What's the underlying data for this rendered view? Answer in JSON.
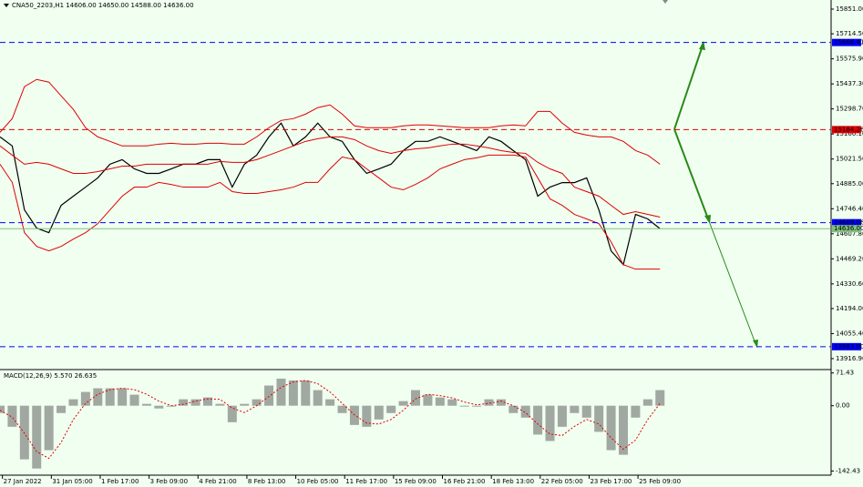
{
  "chart_data": [
    {
      "type": "line",
      "title": "CNA50_2203,H1  14606.00 14650.00 14588.00 14636.00",
      "x": [
        0,
        10,
        20,
        30,
        40,
        50,
        60,
        70,
        80,
        90,
        100,
        110,
        120,
        130,
        140,
        150,
        160,
        170,
        180,
        190,
        200,
        210,
        220,
        230,
        240,
        250,
        260,
        270,
        280,
        290,
        300,
        310,
        320,
        330,
        340,
        350,
        360,
        370,
        380,
        390,
        400,
        410,
        420,
        430,
        440,
        450,
        460,
        470,
        480,
        490,
        500,
        510,
        520,
        530,
        540
      ],
      "xlim": [
        0,
        680
      ],
      "ylim": [
        13856.3,
        15901.5
      ],
      "yticks": [
        {
          "value": 15851,
          "label": "15851.00"
        },
        {
          "value": 15714.5,
          "label": "15714.50"
        },
        {
          "value": 15575.9,
          "label": "15575.90"
        },
        {
          "value": 15437.3,
          "label": "15437.30"
        },
        {
          "value": 15298.7,
          "label": "15298.70"
        },
        {
          "value": 15160.1,
          "label": "15160.10"
        },
        {
          "value": 15021.5,
          "label": "15021.50"
        },
        {
          "value": 14885,
          "label": "14885.00"
        },
        {
          "value": 14746.4,
          "label": "14746.40"
        },
        {
          "value": 14607.8,
          "label": "14607.80"
        },
        {
          "value": 14469.2,
          "label": "14469.20"
        },
        {
          "value": 14330.6,
          "label": "14330.60"
        },
        {
          "value": 14194,
          "label": "14194.00"
        },
        {
          "value": 14055.4,
          "label": "14055.40"
        },
        {
          "value": 13916.9,
          "label": "13916.90"
        }
      ],
      "series": [
        {
          "color": "#000000",
          "values": [
            15144,
            15094,
            14740,
            14639,
            14614,
            14765,
            14816,
            14866,
            14917,
            14993,
            15018,
            14967,
            14942,
            14942,
            14967,
            14993,
            14993,
            15018,
            15018,
            14866,
            14993,
            15043,
            15144,
            15220,
            15094,
            15144,
            15220,
            15144,
            15119,
            15018,
            14942,
            14967,
            14993,
            15068,
            15119,
            15119,
            15144,
            15119,
            15094,
            15068,
            15144,
            15119,
            15068,
            15018,
            14816,
            14866,
            14891,
            14891,
            14917,
            14740,
            14513,
            14437,
            14715,
            14690,
            14636
          ]
        },
        {
          "color": "#e00000",
          "values": [
            15169,
            15245,
            15422,
            15462,
            15447,
            15371,
            15296,
            15195,
            15144,
            15119,
            15094,
            15094,
            15094,
            15104,
            15109,
            15104,
            15104,
            15109,
            15109,
            15104,
            15104,
            15144,
            15195,
            15235,
            15245,
            15270,
            15306,
            15321,
            15270,
            15205,
            15195,
            15195,
            15195,
            15205,
            15210,
            15210,
            15205,
            15200,
            15195,
            15195,
            15195,
            15205,
            15210,
            15205,
            15285,
            15285,
            15220,
            15169,
            15154,
            15144,
            15144,
            15119,
            15068,
            15043,
            14993
          ]
        },
        {
          "color": "#e00000",
          "values": [
            15094,
            15043,
            14993,
            15003,
            14993,
            14967,
            14942,
            14942,
            14952,
            14967,
            14982,
            14982,
            14993,
            14993,
            14993,
            14993,
            14993,
            14993,
            15008,
            15003,
            15003,
            15018,
            15043,
            15068,
            15094,
            15119,
            15134,
            15144,
            15144,
            15129,
            15094,
            15068,
            15053,
            15068,
            15078,
            15083,
            15094,
            15104,
            15104,
            15094,
            15083,
            15068,
            15058,
            15053,
            15003,
            14967,
            14942,
            14866,
            14841,
            14816,
            14765,
            14715,
            14730,
            14715,
            14700
          ]
        },
        {
          "color": "#e00000",
          "values": [
            14993,
            14892,
            14614,
            14538,
            14513,
            14538,
            14578,
            14614,
            14664,
            14740,
            14816,
            14866,
            14866,
            14892,
            14881,
            14866,
            14866,
            14866,
            14892,
            14841,
            14831,
            14831,
            14841,
            14851,
            14866,
            14892,
            14892,
            14967,
            15033,
            15018,
            14967,
            14917,
            14866,
            14851,
            14881,
            14917,
            14967,
            14993,
            15018,
            15028,
            15043,
            15043,
            15043,
            15033,
            14917,
            14801,
            14765,
            14715,
            14690,
            14664,
            14563,
            14437,
            14412,
            14412,
            14412
          ]
        }
      ],
      "levels": [
        {
          "value": 15666.41,
          "label": "15666.41",
          "color": "#0000ff",
          "dash": true
        },
        {
          "value": 15184.26,
          "label": "15184.26",
          "color": "#e00000",
          "dash": true
        },
        {
          "value": 14669.06,
          "label": "14669.06",
          "color": "#0000ff",
          "dash": true
        },
        {
          "value": 14636,
          "label": "14636.00",
          "color": "#80c080",
          "dash": false
        },
        {
          "value": 13983,
          "label": "13983.00",
          "color": "#0000ff",
          "dash": true
        }
      ]
    },
    {
      "type": "bar",
      "title": "MACD(12,26,9) 5.570 26.635",
      "x": [
        0,
        10,
        20,
        30,
        40,
        50,
        60,
        70,
        80,
        90,
        100,
        110,
        120,
        130,
        140,
        150,
        160,
        170,
        180,
        190,
        200,
        210,
        220,
        230,
        240,
        250,
        260,
        270,
        280,
        290,
        300,
        310,
        320,
        330,
        340,
        350,
        360,
        370,
        380,
        390,
        400,
        410,
        420,
        430,
        440,
        450,
        460,
        470,
        480,
        490,
        500,
        510,
        520,
        530,
        540
      ],
      "xlim": [
        0,
        680
      ],
      "ylim": [
        -151.5,
        78.8
      ],
      "yticks": [
        {
          "value": 71.43,
          "label": "71.43"
        },
        {
          "value": 0,
          "label": "0.00"
        },
        {
          "value": -142.43,
          "label": "-142.43"
        }
      ],
      "xticks": [
        {
          "value": 2,
          "label": "27 Jan 2022"
        },
        {
          "value": 42,
          "label": "31 Jan 05:00"
        },
        {
          "value": 82,
          "label": "1 Feb 17:00"
        },
        {
          "value": 122,
          "label": "3 Feb 09:00"
        },
        {
          "value": 162,
          "label": "4 Feb 21:00"
        },
        {
          "value": 202,
          "label": "8 Feb 13:00"
        },
        {
          "value": 242,
          "label": "10 Feb 05:00"
        },
        {
          "value": 282,
          "label": "11 Feb 17:00"
        },
        {
          "value": 322,
          "label": "15 Feb 09:00"
        },
        {
          "value": 362,
          "label": "16 Feb 21:00"
        },
        {
          "value": 402,
          "label": "18 Feb 13:00"
        },
        {
          "value": 442,
          "label": "22 Feb 05:00"
        },
        {
          "value": 482,
          "label": "23 Feb 17:00"
        },
        {
          "value": 522,
          "label": "25 Feb 09:00"
        }
      ],
      "series": [
        {
          "color": "#606060",
          "values": [
            -16,
            -46,
            -117,
            -137,
            -97,
            -16,
            14,
            30,
            38,
            38,
            38,
            24,
            4,
            -6,
            -2,
            14,
            14,
            18,
            4,
            -36,
            4,
            14,
            44,
            59,
            55,
            55,
            34,
            14,
            -16,
            -42,
            -46,
            -30,
            -16,
            10,
            34,
            24,
            18,
            14,
            -2,
            -2,
            14,
            14,
            -16,
            -26,
            -63,
            -77,
            -46,
            -16,
            -26,
            -57,
            -97,
            -107,
            -26,
            14,
            34
          ]
        },
        {
          "color": "#e00000",
          "values": [
            -10,
            -25,
            -60,
            -100,
            -115,
            -80,
            -30,
            5,
            25,
            35,
            38,
            35,
            25,
            10,
            0,
            3,
            10,
            15,
            14,
            -5,
            -15,
            0,
            20,
            40,
            52,
            55,
            48,
            30,
            5,
            -20,
            -38,
            -40,
            -30,
            -10,
            15,
            25,
            22,
            17,
            8,
            2,
            5,
            10,
            0,
            -15,
            -40,
            -62,
            -65,
            -45,
            -30,
            -40,
            -70,
            -95,
            -75,
            -30,
            5
          ]
        }
      ]
    }
  ]
}
